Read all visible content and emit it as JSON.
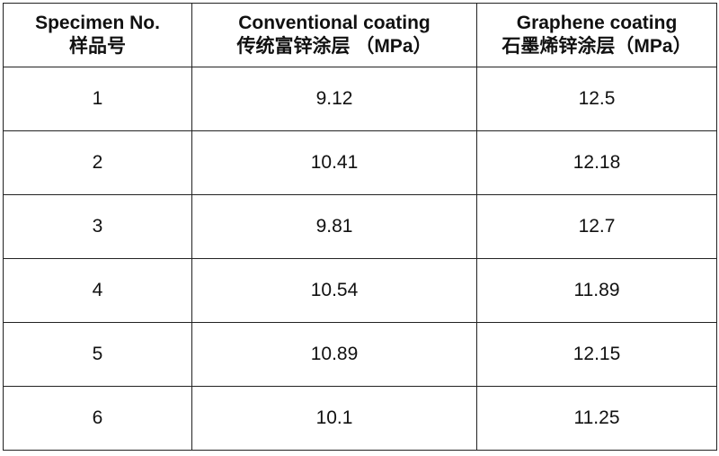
{
  "table": {
    "header": [
      [
        "Specimen No.",
        "样品号"
      ],
      [
        "Conventional coating",
        "传统富锌涂层 （MPa）"
      ],
      [
        "Graphene coating",
        "石墨烯锌涂层（MPa）"
      ]
    ],
    "rows": [
      [
        "1",
        9.12,
        12.5
      ],
      [
        "2",
        10.41,
        12.18
      ],
      [
        "3",
        9.81,
        12.7
      ],
      [
        "4",
        10.54,
        11.89
      ],
      [
        "5",
        10.89,
        12.15
      ],
      [
        "6",
        10.1,
        11.25
      ]
    ]
  }
}
